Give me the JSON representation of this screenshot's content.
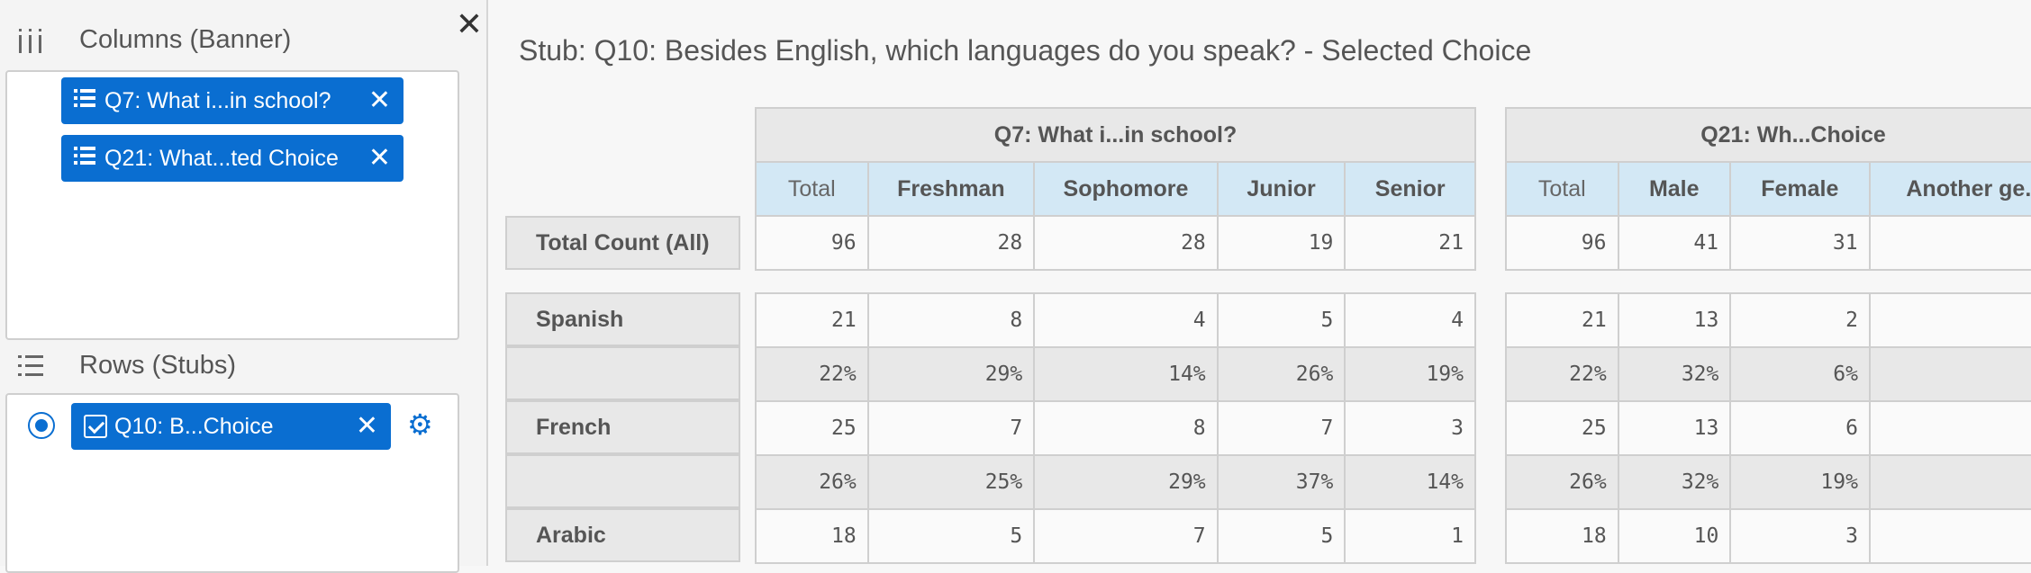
{
  "sidebar": {
    "close_label": "✕",
    "columns_title": "Columns (Banner)",
    "columns_chips": [
      {
        "label": "Q7: What i...in school?"
      },
      {
        "label": "Q21: What...ted Choice"
      }
    ],
    "rows_title": "Rows (Stubs)",
    "rows_chips": [
      {
        "label": "Q10: B...Choice"
      }
    ]
  },
  "main": {
    "stub_title": "Stub: Q10: Besides English, which languages do you speak? - Selected Choice",
    "total_row_label": "Total Count (All)",
    "row_labels": [
      "Spanish",
      "",
      "French",
      "",
      "Arabic"
    ],
    "banner1": {
      "group": "Q7: What i...in school?",
      "columns": [
        "Total",
        "Freshman",
        "Sophomore",
        "Junior",
        "Senior"
      ],
      "total": [
        "96",
        "28",
        "28",
        "19",
        "21"
      ],
      "rows": [
        [
          "21",
          "8",
          "4",
          "5",
          "4"
        ],
        [
          "22%",
          "29%",
          "14%",
          "26%",
          "19%"
        ],
        [
          "25",
          "7",
          "8",
          "7",
          "3"
        ],
        [
          "26%",
          "25%",
          "29%",
          "37%",
          "14%"
        ],
        [
          "18",
          "5",
          "7",
          "5",
          "1"
        ]
      ]
    },
    "banner2": {
      "group": "Q21: Wh...Choice",
      "columns": [
        "Total",
        "Male",
        "Female",
        "Another ge..."
      ],
      "total": [
        "96",
        "41",
        "31",
        ""
      ],
      "rows": [
        [
          "21",
          "13",
          "2",
          ""
        ],
        [
          "22%",
          "32%",
          "6%",
          ""
        ],
        [
          "25",
          "13",
          "6",
          ""
        ],
        [
          "26%",
          "32%",
          "19%",
          ""
        ],
        [
          "18",
          "10",
          "3",
          ""
        ]
      ]
    }
  }
}
